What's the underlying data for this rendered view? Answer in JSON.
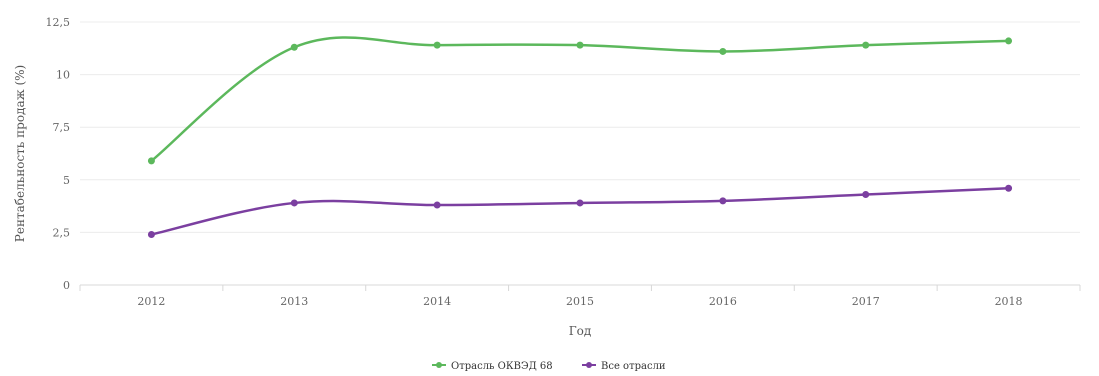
{
  "chart_data": {
    "type": "line",
    "title": "",
    "xlabel": "Год",
    "ylabel": "Рентабельность продаж (%)",
    "categories": [
      "2012",
      "2013",
      "2014",
      "2015",
      "2016",
      "2017",
      "2018"
    ],
    "ylim": [
      0,
      12.5
    ],
    "yticks": [
      0,
      2.5,
      5,
      7.5,
      10,
      12.5
    ],
    "ytick_labels": [
      "0",
      "2,5",
      "5",
      "7,5",
      "10",
      "12,5"
    ],
    "grid": true,
    "legend_position": "bottom-center",
    "series": [
      {
        "name": "Отрасль ОКВЭД 68",
        "color": "#5cb85c",
        "values": [
          5.9,
          11.3,
          11.4,
          11.4,
          11.1,
          11.4,
          11.6
        ]
      },
      {
        "name": "Все отрасли",
        "color": "#7b3fa0",
        "values": [
          2.4,
          3.9,
          3.8,
          3.9,
          4.0,
          4.3,
          4.6
        ]
      }
    ]
  }
}
